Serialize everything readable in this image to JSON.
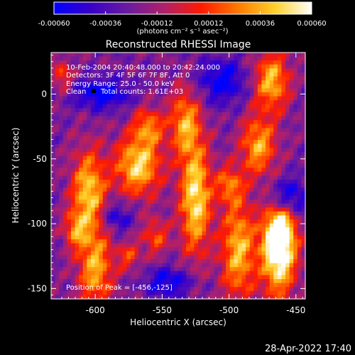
{
  "colorbar": {
    "ticks": [
      "-0.00060",
      "-0.00036",
      "-0.00012",
      "0.00012",
      "0.00036",
      "0.00060"
    ],
    "tick_values": [
      -0.0006,
      -0.00036,
      -0.00012,
      0.00012,
      0.00036,
      0.0006
    ],
    "range": [
      -0.0006,
      0.0006
    ],
    "units_label": "(photons cm⁻² s⁻¹ asec⁻²)",
    "colormap": [
      "#0000ff",
      "#3a00c8",
      "#6a1ba0",
      "#b0206b",
      "#ff1a00",
      "#ff7a00",
      "#ffd02a",
      "#ffffff"
    ]
  },
  "chart_data": {
    "type": "heatmap",
    "title": "Reconstructed RHESSI Image",
    "xlabel": "Heliocentric X (arcsec)",
    "ylabel": "Heliocentric Y (arcsec)",
    "xlim": [
      -633,
      -443
    ],
    "ylim": [
      -158,
      32
    ],
    "xticks": [
      -600,
      -550,
      -500,
      -450
    ],
    "xtick_labels": [
      "-600",
      "-550",
      "-500",
      "-450"
    ],
    "yticks": [
      -150,
      -100,
      -50,
      0
    ],
    "ytick_labels": [
      "-150",
      "-100",
      "-50",
      "0"
    ],
    "annotations": [
      "10-Feb-2004 20:40:48.000 to 20:42:24.000",
      "Detectors: 3F 4F 5F 6F 7F 8F, Att 0",
      "Energy Range: 25.0 - 50.0 keV",
      "Clean",
      "Total counts: 1.61E+03",
      "Position of Peak = [-456,-125]"
    ],
    "peak": [
      -456,
      -125
    ],
    "sources": [
      {
        "x": -463,
        "y": -125,
        "sx": 9,
        "sy": 22,
        "amp": 1.0
      },
      {
        "x": -462,
        "y": -105,
        "sx": 8,
        "sy": 14,
        "amp": 0.75
      },
      {
        "x": -525,
        "y": -80,
        "sx": 8,
        "sy": 30,
        "amp": 0.9
      },
      {
        "x": -533,
        "y": -22,
        "sx": 8,
        "sy": 18,
        "amp": 0.65
      },
      {
        "x": -568,
        "y": -55,
        "sx": 12,
        "sy": 16,
        "amp": 0.85
      },
      {
        "x": -560,
        "y": -25,
        "sx": 8,
        "sy": 10,
        "amp": 0.55
      },
      {
        "x": -605,
        "y": -75,
        "sx": 9,
        "sy": 22,
        "amp": 0.8
      },
      {
        "x": -600,
        "y": -135,
        "sx": 9,
        "sy": 22,
        "amp": 0.7
      },
      {
        "x": -615,
        "y": -105,
        "sx": 6,
        "sy": 10,
        "amp": 0.5
      },
      {
        "x": -493,
        "y": -120,
        "sx": 9,
        "sy": 28,
        "amp": 0.75
      },
      {
        "x": -500,
        "y": -70,
        "sx": 7,
        "sy": 10,
        "amp": 0.5
      },
      {
        "x": -478,
        "y": -40,
        "sx": 9,
        "sy": 16,
        "amp": 0.7
      },
      {
        "x": -468,
        "y": 10,
        "sx": 9,
        "sy": 16,
        "amp": 0.75
      },
      {
        "x": -555,
        "y": -110,
        "sx": 7,
        "sy": 10,
        "amp": 0.45
      },
      {
        "x": -575,
        "y": -125,
        "sx": 6,
        "sy": 8,
        "amp": 0.4
      },
      {
        "x": -625,
        "y": 15,
        "sx": 5,
        "sy": 8,
        "amp": 0.45
      }
    ],
    "negative_regions": [
      {
        "x": -595,
        "y": 0,
        "sx": 14,
        "sy": 8,
        "amp": 0.55
      },
      {
        "x": -505,
        "y": 10,
        "sx": 12,
        "sy": 12,
        "amp": 0.5
      },
      {
        "x": -455,
        "y": -80,
        "sx": 10,
        "sy": 10,
        "amp": 0.5
      },
      {
        "x": -545,
        "y": -145,
        "sx": 12,
        "sy": 8,
        "amp": 0.45
      },
      {
        "x": -585,
        "y": -95,
        "sx": 8,
        "sy": 8,
        "amp": 0.4
      }
    ]
  },
  "footer": {
    "timestamp": "28-Apr-2022 17:40"
  }
}
